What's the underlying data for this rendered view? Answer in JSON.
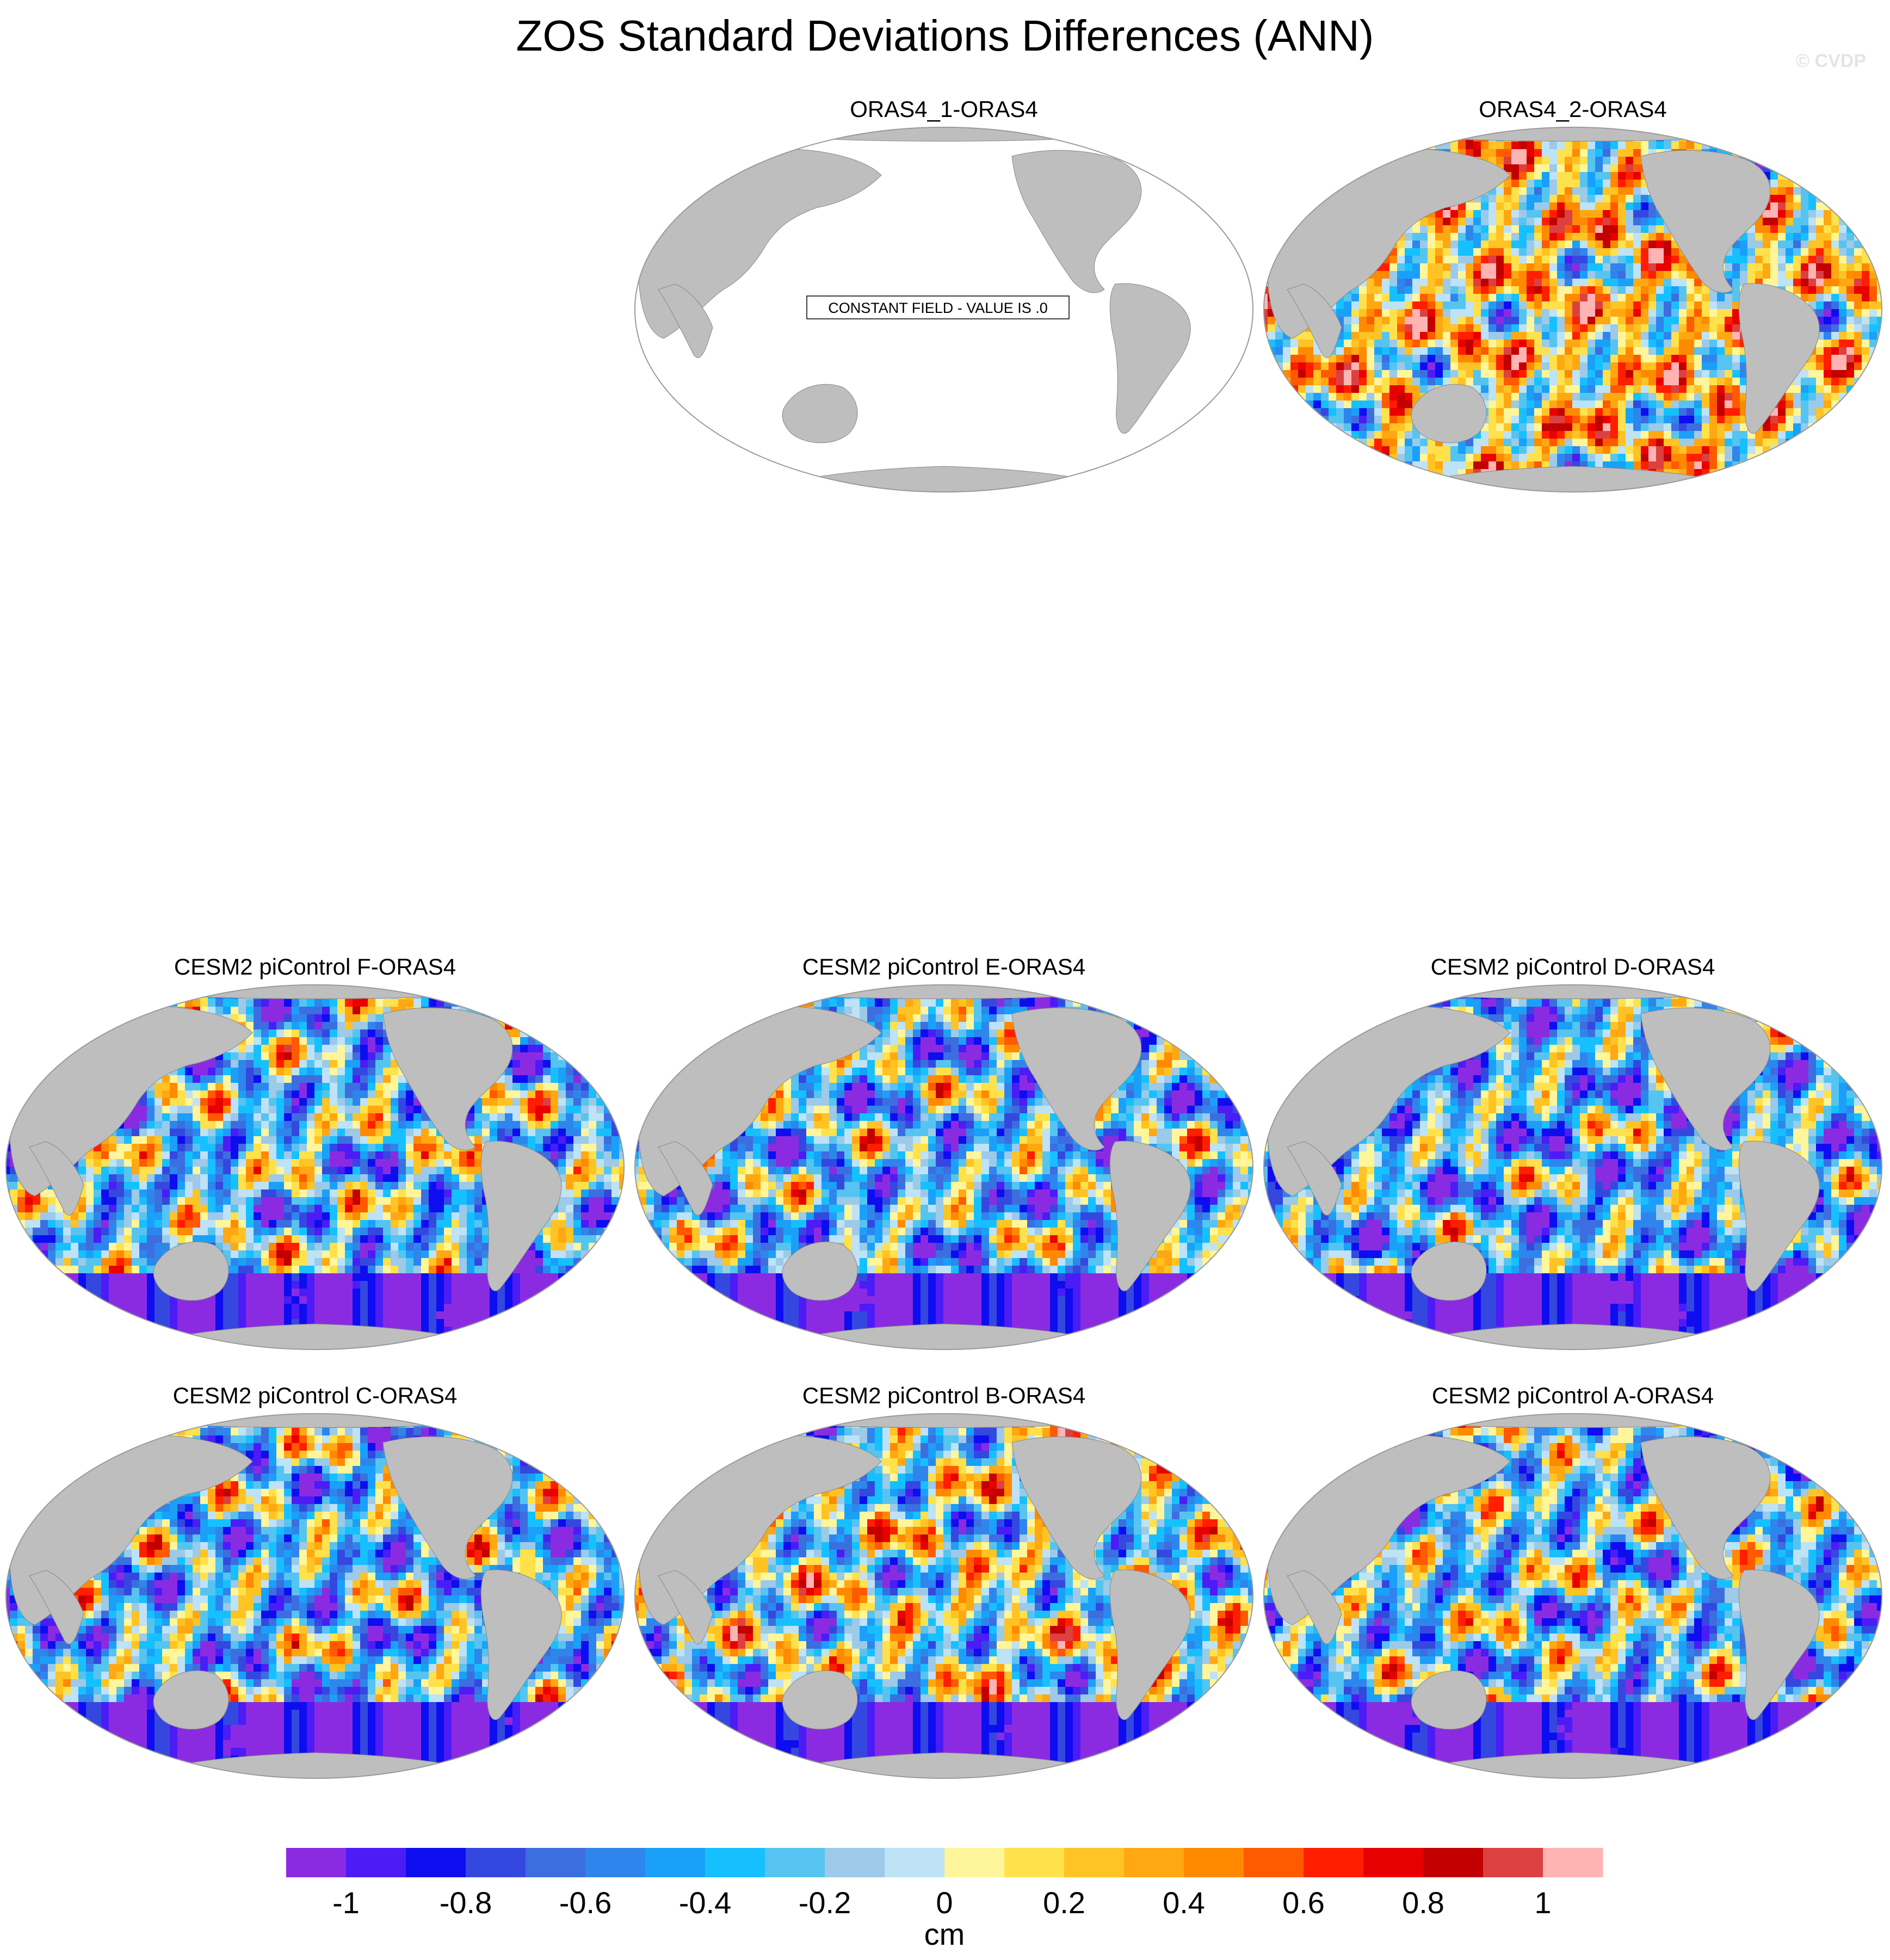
{
  "figure": {
    "title": "ZOS Standard Deviations Differences (ANN)",
    "watermark": "© CVDP"
  },
  "colors": {
    "land": "#bebebe",
    "palette": [
      "#8a2be2",
      "#4b1cf6",
      "#0d0df0",
      "#3448e0",
      "#3c6ee0",
      "#2e86ec",
      "#1aa0f8",
      "#16c0ff",
      "#56c4f0",
      "#9ccae8",
      "#bee2f6",
      "#fff59a",
      "#ffe14c",
      "#ffc324",
      "#ffa812",
      "#ff8a00",
      "#ff5a00",
      "#ff1e00",
      "#e80000",
      "#c20000",
      "#dc4040",
      "#ffb4b4"
    ]
  },
  "panels": [
    {
      "id": "oras4-1",
      "title": "ORAS4_1-ORAS4",
      "note": "CONSTANT FIELD - VALUE IS .0",
      "constant": true,
      "bias": 0
    },
    {
      "id": "oras4-2",
      "title": "ORAS4_2-ORAS4",
      "constant": false,
      "bias": 0.15
    },
    {
      "id": "cesm2-f",
      "title": "CESM2 piControl F-ORAS4",
      "constant": false,
      "bias": -0.25
    },
    {
      "id": "cesm2-e",
      "title": "CESM2 piControl E-ORAS4",
      "constant": false,
      "bias": -0.3
    },
    {
      "id": "cesm2-d",
      "title": "CESM2 piControl D-ORAS4",
      "constant": false,
      "bias": -0.35
    },
    {
      "id": "cesm2-c",
      "title": "CESM2 piControl C-ORAS4",
      "constant": false,
      "bias": -0.3
    },
    {
      "id": "cesm2-b",
      "title": "CESM2 piControl B-ORAS4",
      "constant": false,
      "bias": -0.1
    },
    {
      "id": "cesm2-a",
      "title": "CESM2 piControl A-ORAS4",
      "constant": false,
      "bias": -0.25
    }
  ],
  "colorbar": {
    "tick_labels": [
      "-1",
      "-0.8",
      "-0.6",
      "-0.4",
      "-0.2",
      "0",
      "0.2",
      "0.4",
      "0.6",
      "0.8",
      "1"
    ],
    "tick_values": [
      -1,
      -0.8,
      -0.6,
      -0.4,
      -0.2,
      0,
      0.2,
      0.4,
      0.6,
      0.8,
      1
    ],
    "unit": "cm",
    "range": [
      -1.1,
      1.1
    ],
    "step": 0.1
  }
}
